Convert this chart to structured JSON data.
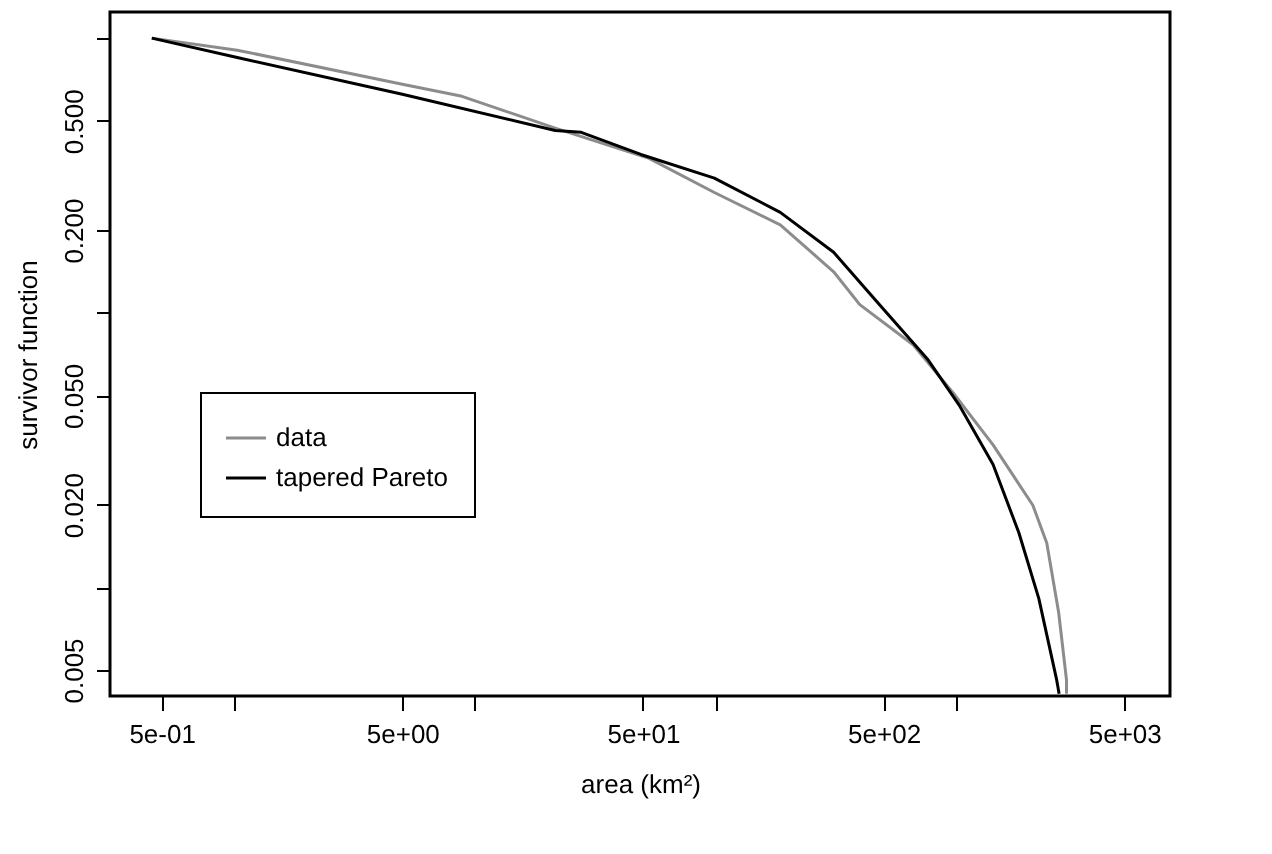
{
  "chart_data": {
    "type": "line",
    "xlabel": "area (km²)",
    "ylabel": "survivor function",
    "log": "xy",
    "grid": false,
    "legend": "left",
    "marker": "none",
    "line_style": "solid",
    "xlim": [
      0.305,
      7745
    ],
    "ylim": [
      0.00402,
      1.245
    ],
    "xticks": [
      {
        "value": 0.5,
        "label": "5e-01"
      },
      {
        "value": 1,
        "label": null
      },
      {
        "value": 5,
        "label": "5e+00"
      },
      {
        "value": 10,
        "label": null
      },
      {
        "value": 50,
        "label": "5e+01"
      },
      {
        "value": 100,
        "label": null
      },
      {
        "value": 500,
        "label": "5e+02"
      },
      {
        "value": 1000,
        "label": null
      },
      {
        "value": 5000,
        "label": "5e+03"
      }
    ],
    "yticks": [
      0.005,
      {
        "value": 0.01,
        "label": null
      },
      {
        "value": 0.02,
        "label": "0.020"
      },
      {
        "value": 0.05,
        "label": "0.050"
      },
      {
        "value": 0.1,
        "label": null
      },
      {
        "value": 0.2,
        "label": "0.200"
      },
      {
        "value": 0.5,
        "label": "0.500"
      },
      {
        "value": 1,
        "label": null
      }
    ],
    "series": [
      {
        "name": "data",
        "color": "#8c8c8c",
        "x": [
          0.455,
          1.03,
          5.0,
          8.85,
          21.6,
          53,
          99,
          186,
          310,
          398,
          665,
          973,
          1425,
          2085,
          2382,
          2669,
          2877,
          2877
        ],
        "values": [
          1,
          0.904,
          0.679,
          0.614,
          0.47,
          0.365,
          0.274,
          0.209,
          0.141,
          0.107,
          0.0763,
          0.051,
          0.033,
          0.0199,
          0.0145,
          0.0081,
          0.0046,
          0.0041
        ]
      },
      {
        "name": "tapered Pareto",
        "color": "#000000",
        "x": [
          0.455,
          1.03,
          5.0,
          21.6,
          27.7,
          49,
          99,
          186,
          310,
          481,
          760,
          1030,
          1425,
          1824,
          2208,
          2619,
          2680
        ],
        "values": [
          1,
          0.85,
          0.625,
          0.461,
          0.454,
          0.377,
          0.309,
          0.232,
          0.166,
          0.107,
          0.0679,
          0.0461,
          0.028,
          0.0158,
          0.0091,
          0.0046,
          0.0041
        ]
      }
    ]
  }
}
